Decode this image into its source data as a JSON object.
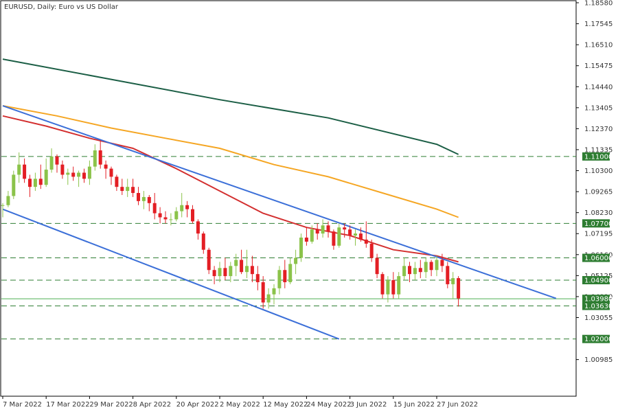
{
  "chart_data": {
    "type": "candlestick",
    "title": "EURUSD, Daily:  Euro vs US Dollar",
    "xlabel": "",
    "ylabel": "",
    "ylim": [
      1.0016,
      1.1858
    ],
    "grid": false,
    "legend": "none",
    "y_ticks": [
      "1.18580",
      "1.17545",
      "1.16510",
      "1.15475",
      "1.14440",
      "1.13405",
      "1.12370",
      "1.11335",
      "1.10300",
      "1.09265",
      "1.08230",
      "1.07195",
      "1.06160",
      "1.05125",
      "1.04090",
      "1.03055",
      "1.00985"
    ],
    "x_ticks": [
      {
        "label": "7 Mar 2022",
        "index": 0
      },
      {
        "label": "17 Mar 2022",
        "index": 8
      },
      {
        "label": "29 Mar 2022",
        "index": 16
      },
      {
        "label": "8 Apr 2022",
        "index": 24
      },
      {
        "label": "20 Apr 2022",
        "index": 32
      },
      {
        "label": "2 May 2022",
        "index": 40
      },
      {
        "label": "12 May 2022",
        "index": 48
      },
      {
        "label": "24 May 2022",
        "index": 56
      },
      {
        "label": "3 Jun 2022",
        "index": 64
      },
      {
        "label": "15 Jun 2022",
        "index": 72
      },
      {
        "label": "27 Jun 2022",
        "index": 80
      }
    ],
    "candles": [
      [
        1.086,
        1.087,
        1.08,
        1.086
      ],
      [
        1.086,
        1.093,
        1.085,
        1.0905
      ],
      [
        1.0905,
        1.103,
        1.089,
        1.101
      ],
      [
        1.101,
        1.112,
        1.097,
        1.106
      ],
      [
        1.106,
        1.109,
        1.097,
        1.099
      ],
      [
        1.099,
        1.101,
        1.09,
        1.095
      ],
      [
        1.095,
        1.102,
        1.093,
        1.099
      ],
      [
        1.099,
        1.106,
        1.094,
        1.096
      ],
      [
        1.096,
        1.109,
        1.095,
        1.1035
      ],
      [
        1.1035,
        1.114,
        1.102,
        1.11
      ],
      [
        1.11,
        1.111,
        1.102,
        1.106
      ],
      [
        1.106,
        1.108,
        1.099,
        1.101
      ],
      [
        1.101,
        1.104,
        1.096,
        1.102
      ],
      [
        1.102,
        1.105,
        1.098,
        1.1
      ],
      [
        1.1,
        1.103,
        1.095,
        1.102
      ],
      [
        1.102,
        1.104,
        1.097,
        1.099
      ],
      [
        1.099,
        1.108,
        1.096,
        1.105
      ],
      [
        1.105,
        1.116,
        1.103,
        1.113
      ],
      [
        1.113,
        1.118,
        1.104,
        1.106
      ],
      [
        1.106,
        1.108,
        1.099,
        1.104
      ],
      [
        1.104,
        1.105,
        1.096,
        1.1
      ],
      [
        1.1,
        1.101,
        1.093,
        1.095
      ],
      [
        1.095,
        1.099,
        1.091,
        1.093
      ],
      [
        1.093,
        1.099,
        1.09,
        1.095
      ],
      [
        1.095,
        1.099,
        1.09,
        1.092
      ],
      [
        1.092,
        1.095,
        1.086,
        1.088
      ],
      [
        1.088,
        1.093,
        1.084,
        1.09
      ],
      [
        1.09,
        1.091,
        1.083,
        1.087
      ],
      [
        1.087,
        1.092,
        1.079,
        1.082
      ],
      [
        1.082,
        1.085,
        1.077,
        1.08
      ],
      [
        1.08,
        1.083,
        1.077,
        1.079
      ],
      [
        1.079,
        1.082,
        1.076,
        1.079
      ],
      [
        1.079,
        1.085,
        1.078,
        1.083
      ],
      [
        1.083,
        1.092,
        1.08,
        1.086
      ],
      [
        1.086,
        1.088,
        1.08,
        1.084
      ],
      [
        1.084,
        1.086,
        1.077,
        1.078
      ],
      [
        1.078,
        1.079,
        1.069,
        1.072
      ],
      [
        1.072,
        1.073,
        1.062,
        1.064
      ],
      [
        1.064,
        1.065,
        1.052,
        1.054
      ],
      [
        1.054,
        1.056,
        1.047,
        1.051
      ],
      [
        1.051,
        1.058,
        1.048,
        1.055
      ],
      [
        1.055,
        1.06,
        1.049,
        1.051
      ],
      [
        1.051,
        1.058,
        1.048,
        1.056
      ],
      [
        1.056,
        1.062,
        1.051,
        1.059
      ],
      [
        1.059,
        1.064,
        1.052,
        1.053
      ],
      [
        1.053,
        1.064,
        1.05,
        1.056
      ],
      [
        1.056,
        1.061,
        1.048,
        1.052
      ],
      [
        1.052,
        1.056,
        1.044,
        1.048
      ],
      [
        1.048,
        1.051,
        1.035,
        1.038
      ],
      [
        1.038,
        1.045,
        1.035,
        1.042
      ],
      [
        1.042,
        1.047,
        1.037,
        1.045
      ],
      [
        1.045,
        1.056,
        1.042,
        1.054
      ],
      [
        1.054,
        1.059,
        1.045,
        1.048
      ],
      [
        1.048,
        1.06,
        1.047,
        1.057
      ],
      [
        1.057,
        1.064,
        1.052,
        1.06
      ],
      [
        1.06,
        1.072,
        1.058,
        1.07
      ],
      [
        1.07,
        1.075,
        1.066,
        1.068
      ],
      [
        1.068,
        1.076,
        1.067,
        1.074
      ],
      [
        1.074,
        1.077,
        1.069,
        1.072
      ],
      [
        1.072,
        1.079,
        1.07,
        1.076
      ],
      [
        1.076,
        1.078,
        1.07,
        1.073
      ],
      [
        1.073,
        1.074,
        1.064,
        1.066
      ],
      [
        1.066,
        1.077,
        1.065,
        1.075
      ],
      [
        1.075,
        1.077,
        1.07,
        1.074
      ],
      [
        1.074,
        1.076,
        1.069,
        1.071
      ],
      [
        1.071,
        1.074,
        1.066,
        1.072
      ],
      [
        1.072,
        1.075,
        1.068,
        1.069
      ],
      [
        1.069,
        1.078,
        1.065,
        1.067
      ],
      [
        1.067,
        1.069,
        1.058,
        1.06
      ],
      [
        1.06,
        1.062,
        1.05,
        1.052
      ],
      [
        1.052,
        1.053,
        1.04,
        1.042
      ],
      [
        1.042,
        1.051,
        1.038,
        1.049
      ],
      [
        1.049,
        1.053,
        1.04,
        1.042
      ],
      [
        1.042,
        1.053,
        1.04,
        1.051
      ],
      [
        1.051,
        1.06,
        1.049,
        1.056
      ],
      [
        1.056,
        1.058,
        1.048,
        1.052
      ],
      [
        1.052,
        1.058,
        1.049,
        1.055
      ],
      [
        1.055,
        1.059,
        1.05,
        1.053
      ],
      [
        1.053,
        1.06,
        1.05,
        1.058
      ],
      [
        1.058,
        1.059,
        1.051,
        1.054
      ],
      [
        1.054,
        1.061,
        1.051,
        1.059
      ],
      [
        1.059,
        1.062,
        1.053,
        1.056
      ],
      [
        1.056,
        1.058,
        1.045,
        1.047
      ],
      [
        1.047,
        1.053,
        1.04,
        1.05
      ],
      [
        1.05,
        1.051,
        1.036,
        1.04
      ]
    ],
    "horizontal_levels": [
      {
        "value": 1.11,
        "label": "1.11000",
        "style": "dashed",
        "color": "#2e7d32"
      },
      {
        "value": 1.077,
        "label": "1.07700",
        "style": "dashed",
        "color": "#2e7d32"
      },
      {
        "value": 1.06,
        "label": "1.06000",
        "style": "dashed",
        "color": "#2e7d32"
      },
      {
        "value": 1.049,
        "label": "1.04900",
        "style": "dashed",
        "color": "#2e7d32"
      },
      {
        "value": 1.0398,
        "label": "1.03980",
        "style": "solid",
        "color": "#4caf50"
      },
      {
        "value": 1.0363,
        "label": "1.03630",
        "style": "dashed",
        "color": "#2e7d32"
      },
      {
        "value": 1.02,
        "label": "1.02000",
        "style": "dashed",
        "color": "#2e7d32"
      }
    ],
    "moving_averages": [
      {
        "color": "#1b5e45",
        "points": [
          [
            0,
            1.158
          ],
          [
            20,
            1.148
          ],
          [
            40,
            1.138
          ],
          [
            60,
            1.129
          ],
          [
            80,
            1.116
          ],
          [
            84,
            1.111
          ]
        ]
      },
      {
        "color": "#f5a623",
        "points": [
          [
            0,
            1.135
          ],
          [
            10,
            1.13
          ],
          [
            20,
            1.124
          ],
          [
            30,
            1.119
          ],
          [
            40,
            1.114
          ],
          [
            50,
            1.106
          ],
          [
            60,
            1.1
          ],
          [
            70,
            1.092
          ],
          [
            80,
            1.084
          ],
          [
            84,
            1.08
          ]
        ]
      },
      {
        "color": "#d32f2f",
        "points": [
          [
            0,
            1.13
          ],
          [
            8,
            1.125
          ],
          [
            16,
            1.119
          ],
          [
            24,
            1.114
          ],
          [
            32,
            1.104
          ],
          [
            40,
            1.093
          ],
          [
            48,
            1.082
          ],
          [
            56,
            1.075
          ],
          [
            64,
            1.071
          ],
          [
            72,
            1.064
          ],
          [
            80,
            1.061
          ],
          [
            84,
            1.058
          ]
        ]
      }
    ],
    "trend_lines": [
      {
        "color": "#3b6fd8",
        "from": [
          0,
          1.135
        ],
        "to": [
          102,
          1.04
        ]
      },
      {
        "color": "#3b6fd8",
        "from": [
          0,
          1.084
        ],
        "to": [
          62,
          1.02
        ]
      }
    ],
    "colors": {
      "bull": "#8bc34a",
      "bear": "#e31e24",
      "axis_text": "#333333",
      "label_bg": "#2e7d32",
      "label_text": "#ffffff"
    }
  }
}
